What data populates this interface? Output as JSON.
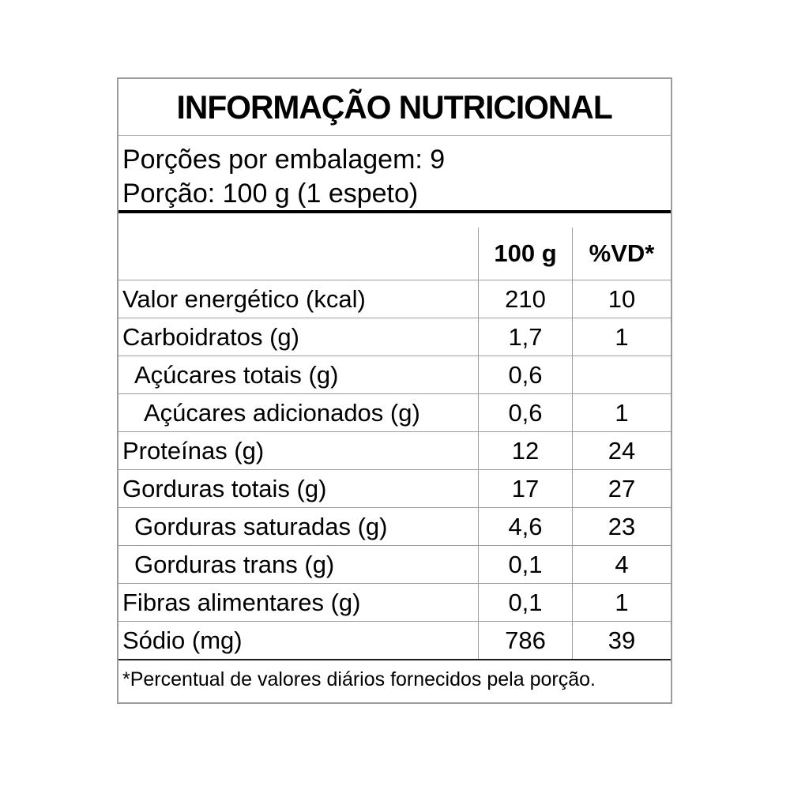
{
  "label": {
    "title": "INFORMAÇÃO NUTRICIONAL",
    "servings_line": "Porções por embalagem: 9",
    "portion_line": "Porção: 100 g (1 espeto)",
    "footnote": "*Percentual de valores diários fornecidos pela porção."
  },
  "table": {
    "columns": {
      "amount": "100 g",
      "dv": "%VD*"
    },
    "rows": [
      {
        "label": "Valor energético (kcal)",
        "amount": "210",
        "dv": "10",
        "indent": 0
      },
      {
        "label": "Carboidratos (g)",
        "amount": "1,7",
        "dv": "1",
        "indent": 0
      },
      {
        "label": "Açúcares totais (g)",
        "amount": "0,6",
        "dv": "",
        "indent": 1
      },
      {
        "label": "Açúcares adicionados (g)",
        "amount": "0,6",
        "dv": "1",
        "indent": 2
      },
      {
        "label": "Proteínas (g)",
        "amount": "12",
        "dv": "24",
        "indent": 0
      },
      {
        "label": "Gorduras totais (g)",
        "amount": "17",
        "dv": "27",
        "indent": 0
      },
      {
        "label": "Gorduras saturadas (g)",
        "amount": "4,6",
        "dv": "23",
        "indent": 1
      },
      {
        "label": "Gorduras trans (g)",
        "amount": "0,1",
        "dv": "4",
        "indent": 1
      },
      {
        "label": "Fibras alimentares (g)",
        "amount": "0,1",
        "dv": "1",
        "indent": 0
      },
      {
        "label": "Sódio (mg)",
        "amount": "786",
        "dv": "39",
        "indent": 0
      }
    ]
  },
  "colors": {
    "text": "#000000",
    "background": "#ffffff",
    "outer_border": "#9c9c9c",
    "grid_line": "#9e9e9e",
    "thick_rule": "#000000"
  }
}
